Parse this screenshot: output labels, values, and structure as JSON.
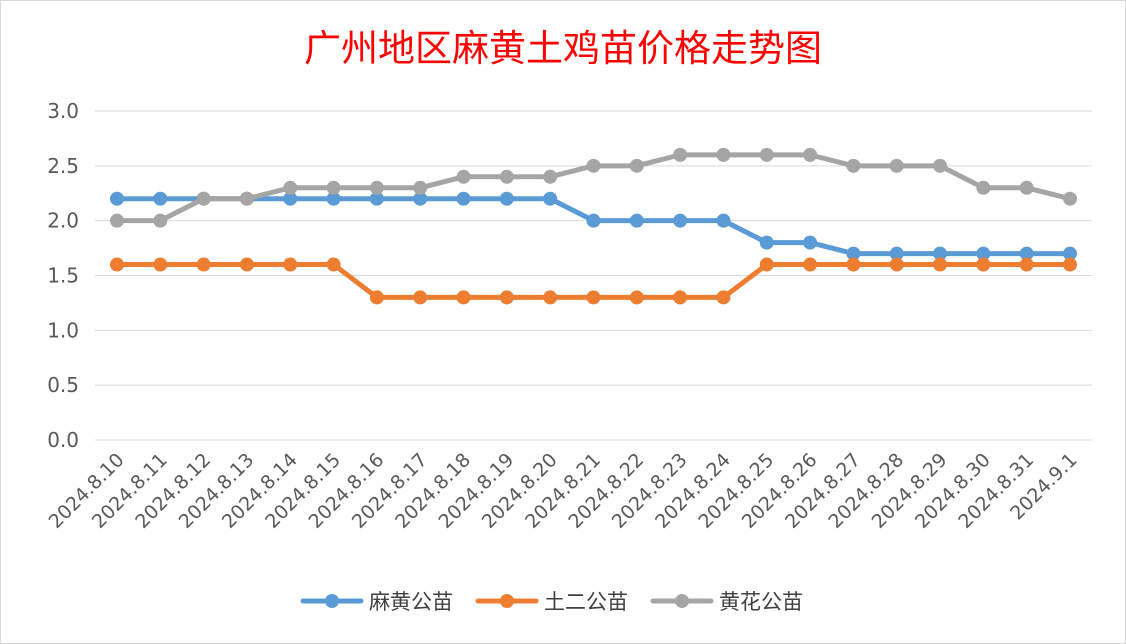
{
  "chart_data": {
    "type": "line",
    "title": "广州地区麻黄土鸡苗价格走势图",
    "xlabel": "",
    "ylabel": "",
    "x": [
      "2024.8.10",
      "2024.8.11",
      "2024.8.12",
      "2024.8.13",
      "2024.8.14",
      "2024.8.15",
      "2024.8.16",
      "2024.8.17",
      "2024.8.18",
      "2024.8.19",
      "2024.8.20",
      "2024.8.21",
      "2024.8.22",
      "2024.8.23",
      "2024.8.24",
      "2024.8.25",
      "2024.8.26",
      "2024.8.27",
      "2024.8.28",
      "2024.8.29",
      "2024.8.30",
      "2024.8.31",
      "2024.9.1"
    ],
    "ylim": [
      0,
      3.0
    ],
    "yticks": [
      "0.0",
      "0.5",
      "1.0",
      "1.5",
      "2.0",
      "2.5",
      "3.0"
    ],
    "grid": true,
    "legend_position": "bottom",
    "series": [
      {
        "name": "麻黄公苗",
        "color": "#5b9bd5",
        "values": [
          2.2,
          2.2,
          2.2,
          2.2,
          2.2,
          2.2,
          2.2,
          2.2,
          2.2,
          2.2,
          2.2,
          2.0,
          2.0,
          2.0,
          2.0,
          1.8,
          1.8,
          1.7,
          1.7,
          1.7,
          1.7,
          1.7,
          1.7
        ]
      },
      {
        "name": "土二公苗",
        "color": "#ed7d31",
        "values": [
          1.6,
          1.6,
          1.6,
          1.6,
          1.6,
          1.6,
          1.3,
          1.3,
          1.3,
          1.3,
          1.3,
          1.3,
          1.3,
          1.3,
          1.3,
          1.6,
          1.6,
          1.6,
          1.6,
          1.6,
          1.6,
          1.6,
          1.6
        ]
      },
      {
        "name": "黄花公苗",
        "color": "#a5a5a5",
        "values": [
          2.0,
          2.0,
          2.2,
          2.2,
          2.3,
          2.3,
          2.3,
          2.3,
          2.4,
          2.4,
          2.4,
          2.5,
          2.5,
          2.6,
          2.6,
          2.6,
          2.6,
          2.5,
          2.5,
          2.5,
          2.3,
          2.3,
          2.2
        ]
      }
    ]
  }
}
